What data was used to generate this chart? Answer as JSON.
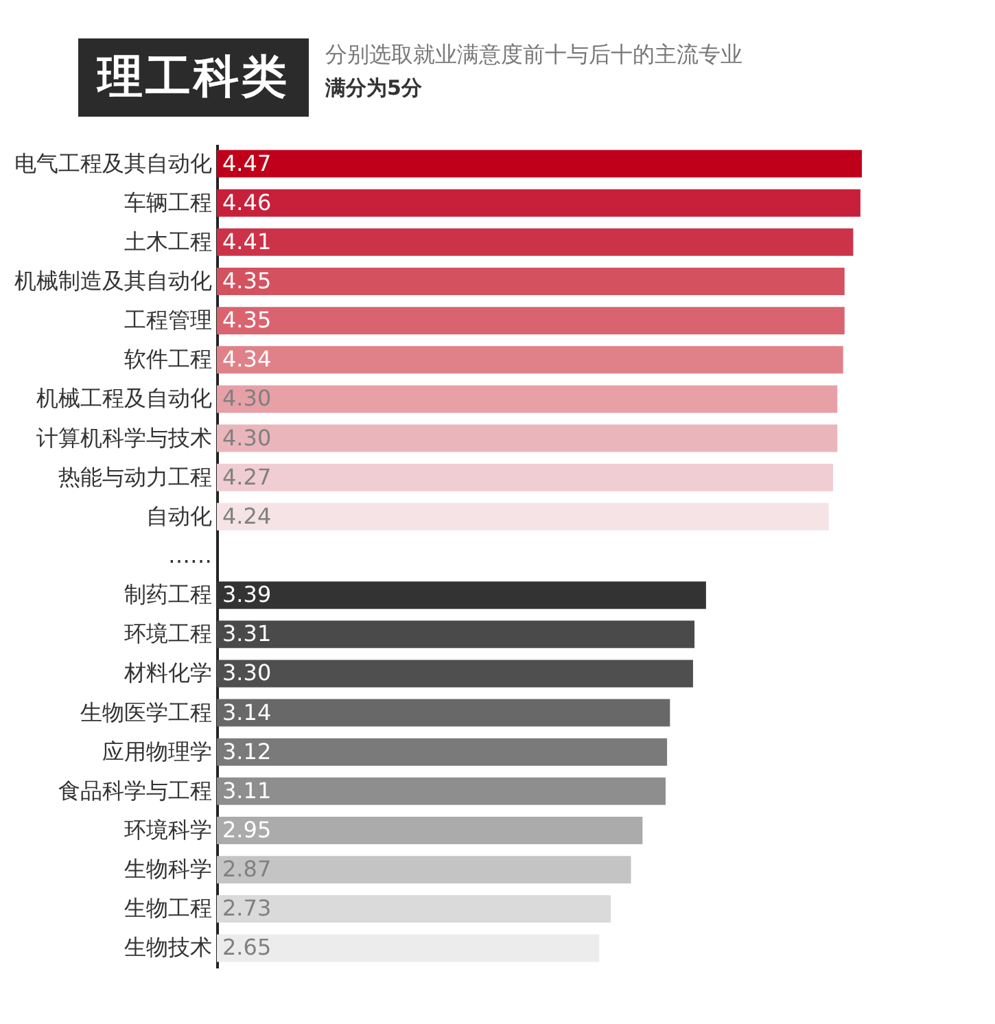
{
  "chart_data": {
    "type": "bar",
    "orientation": "horizontal",
    "title": "理工科类",
    "subtitle": "分别选取就业满意度前十与后十的主流专业",
    "annotations": [
      "满分为5分"
    ],
    "categories": [
      "电气工程及其自动化",
      "车辆工程",
      "土木工程",
      "机械制造及其自动化",
      "工程管理",
      "软件工程",
      "机械工程及自动化",
      "计算机科学与技术",
      "热能与动力工程",
      "自动化",
      "……",
      "制药工程",
      "环境工程",
      "材料化学",
      "生物医学工程",
      "应用物理学",
      "食品科学与工程",
      "环境科学",
      "生物科学",
      "生物工程",
      "生物技术"
    ],
    "values": [
      4.47,
      4.46,
      4.41,
      4.35,
      4.35,
      4.34,
      4.3,
      4.3,
      4.27,
      4.24,
      null,
      3.39,
      3.31,
      3.3,
      3.14,
      3.12,
      3.11,
      2.95,
      2.87,
      2.73,
      2.65
    ],
    "colors": [
      "#c0001a",
      "#c8203a",
      "#cc3349",
      "#d4525f",
      "#d9646f",
      "#e08189",
      "#e6a0a6",
      "#ebb5bc",
      "#f0cdd2",
      "#f6e3e6",
      null,
      "#333333",
      "#4a4a4a",
      "#4f4f4f",
      "#686868",
      "#7a7a7a",
      "#8e8e8e",
      "#ababab",
      "#c4c4c4",
      "#dadada",
      "#ececec"
    ],
    "value_labels": [
      "4.47",
      "4.46",
      "4.41",
      "4.35",
      "4.35",
      "4.34",
      "4.30",
      "4.30",
      "4.27",
      "4.24",
      null,
      "3.39",
      "3.31",
      "3.30",
      "3.14",
      "3.12",
      "3.11",
      "2.95",
      "2.87",
      "2.73",
      "2.65"
    ],
    "data_labels": false
  }
}
